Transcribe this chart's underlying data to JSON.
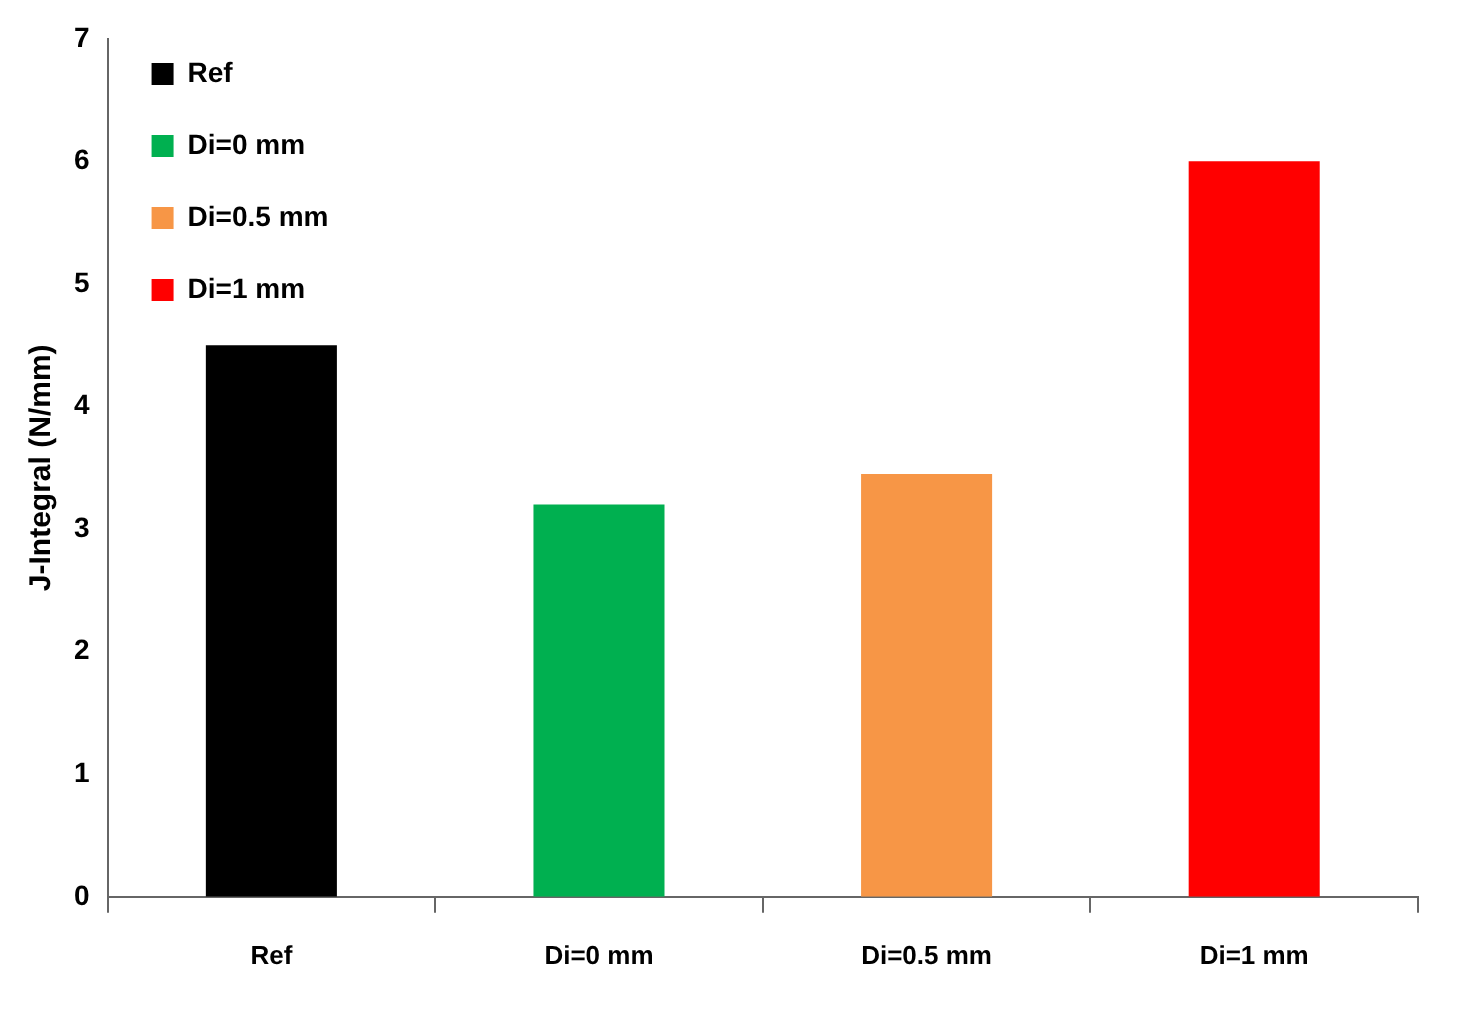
{
  "chart_data": {
    "type": "bar",
    "ylabel": "J-Integral (N/mm)",
    "categories": [
      "Ref",
      "Di=0 mm",
      "Di=0.5 mm",
      "Di=1 mm"
    ],
    "series": [
      {
        "name": "Ref",
        "color": "#000000",
        "values": [
          4.5,
          null,
          null,
          null
        ]
      },
      {
        "name": "Di=0 mm",
        "color": "#00b050",
        "values": [
          null,
          3.2,
          null,
          null
        ]
      },
      {
        "name": "Di=0.5 mm",
        "color": "#f79646",
        "values": [
          null,
          null,
          3.45,
          null
        ]
      },
      {
        "name": "Di=1 mm",
        "color": "#ff0000",
        "values": [
          null,
          null,
          null,
          6.0
        ]
      }
    ],
    "ylim": [
      0,
      7
    ],
    "yticks": [
      0,
      1,
      2,
      3,
      4,
      5,
      6,
      7
    ],
    "grid": false,
    "legend": "top left"
  }
}
